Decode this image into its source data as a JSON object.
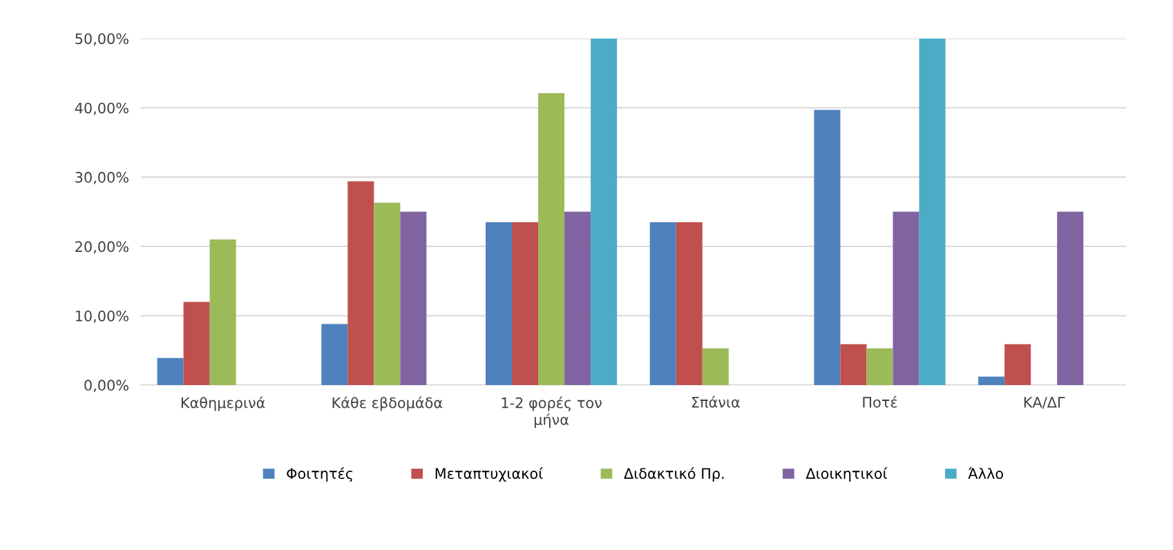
{
  "chart_data": {
    "type": "bar",
    "categories": [
      "Καθημερινά",
      "Κάθε εβδομάδα",
      "1-2 φορές τον\nμήνα",
      "Σπάνια",
      "Ποτέ",
      "ΚΑ/ΔΓ"
    ],
    "series": [
      {
        "name": "Φοιτητές",
        "color": "#4f81bd",
        "values": [
          3.9,
          8.8,
          23.5,
          23.5,
          39.7,
          1.2
        ]
      },
      {
        "name": "Μεταπτυχιακοί",
        "color": "#c0504d",
        "values": [
          12,
          29.4,
          23.5,
          23.5,
          5.9,
          5.9
        ]
      },
      {
        "name": "Διδακτικό Πρ.",
        "color": "#9bbb59",
        "values": [
          21,
          26.3,
          42.1,
          5.3,
          5.3,
          0
        ]
      },
      {
        "name": "Διοικητικοί",
        "color": "#8064a2",
        "values": [
          0,
          25,
          25,
          0,
          25,
          25
        ]
      },
      {
        "name": "Άλλο",
        "color": "#4bacc6",
        "values": [
          0,
          0,
          50,
          0,
          50,
          0
        ]
      }
    ],
    "ylim": [
      0,
      50
    ],
    "yticks": [
      {
        "value": 0,
        "label": "0,00%"
      },
      {
        "value": 10,
        "label": "10,00%"
      },
      {
        "value": 20,
        "label": "20,00%"
      },
      {
        "value": 30,
        "label": "30,00%"
      },
      {
        "value": 40,
        "label": "40,00%"
      },
      {
        "value": 50,
        "label": "50,00%"
      }
    ],
    "grid": "y",
    "legend": "bottom"
  }
}
